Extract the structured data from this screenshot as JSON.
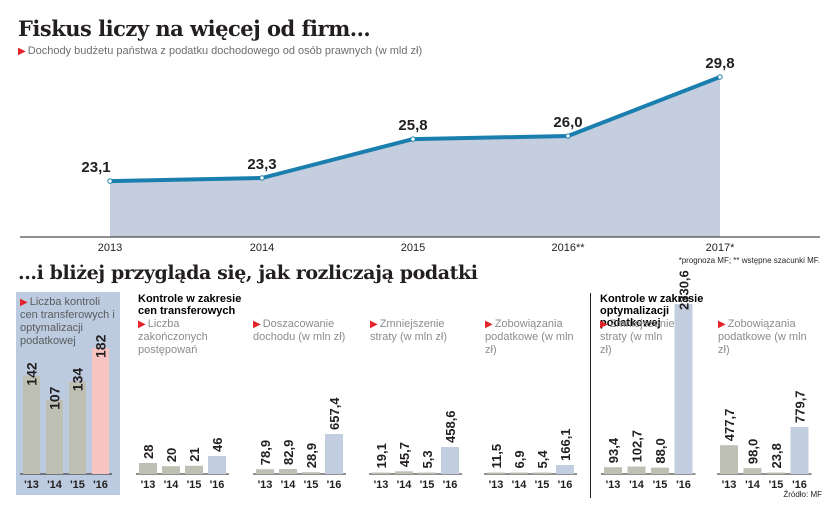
{
  "title": "Fiskus liczy na więcej od firm...",
  "subtitle": "Dochody budżetu państwa z podatku dochodowego od osób prawnych (w mld zł)",
  "footnote": "*prognoza MF; ** wstępne szacunki MF.",
  "bottom_title": "...i bliżej przygląda się, jak rozliczają podatki",
  "group1_title": "Kontrole w zakresie cen transferowych",
  "group2_title": "Kontrole w zakresie optymalizacji podatkowej",
  "source": "Źródło: MF",
  "colors": {
    "line": "#1a7fae",
    "area": "#c5cede",
    "bar_grey": "#bfc0b4",
    "bar_blue": "#c3cde0",
    "bar_pink": "#f7c4c0",
    "accent": "#e2232a",
    "panel_bg": "#bccbe0"
  },
  "chart_data": [
    {
      "type": "area",
      "title": "Fiskus liczy na więcej od firm...",
      "subtitle": "Dochody budżetu państwa z podatku dochodowego od osób prawnych (w mld zł)",
      "x": [
        "2013",
        "2014",
        "2015",
        "2016**",
        "2017*"
      ],
      "values": [
        23.1,
        23.3,
        25.8,
        26.0,
        29.8
      ],
      "labels": [
        "23,1",
        "23,3",
        "25,8",
        "26,0",
        "29,8"
      ],
      "grid": false
    },
    {
      "type": "bar",
      "title": "Liczba kontroli cen transferowych i optymalizacji podatkowej",
      "categories": [
        "'13",
        "'14",
        "'15",
        "'16"
      ],
      "values": [
        142,
        107,
        134,
        182
      ],
      "labels": [
        "142",
        "107",
        "134",
        "182"
      ]
    },
    {
      "type": "bar",
      "title": "Liczba zakończonych postępowań",
      "group": "Kontrole w zakresie cen transferowych",
      "categories": [
        "'13",
        "'14",
        "'15",
        "'16"
      ],
      "values": [
        28,
        20,
        21,
        46
      ],
      "labels": [
        "28",
        "20",
        "21",
        "46"
      ]
    },
    {
      "type": "bar",
      "title": "Doszacowanie dochodu (w mln zł)",
      "group": "Kontrole w zakresie cen transferowych",
      "categories": [
        "'13",
        "'14",
        "'15",
        "'16"
      ],
      "values": [
        78.9,
        82.9,
        28.9,
        657.4
      ],
      "labels": [
        "78,9",
        "82,9",
        "28,9",
        "657,4"
      ]
    },
    {
      "type": "bar",
      "title": "Zmniejszenie straty (w mln zł)",
      "group": "Kontrole w zakresie cen transferowych",
      "categories": [
        "'13",
        "'14",
        "'15",
        "'16"
      ],
      "values": [
        19.1,
        45.7,
        5.3,
        458.6
      ],
      "labels": [
        "19,1",
        "45,7",
        "5,3",
        "458,6"
      ]
    },
    {
      "type": "bar",
      "title": "Zobowiązania podatkowe (w mln zł)",
      "group": "Kontrole w zakresie cen transferowych",
      "categories": [
        "'13",
        "'14",
        "'15",
        "'16"
      ],
      "values": [
        11.5,
        6.9,
        5.4,
        166.1
      ],
      "labels": [
        "11,5",
        "6,9",
        "5,4",
        "166,1"
      ]
    },
    {
      "type": "bar",
      "title": "Zmniejszenie straty (w mln zł)",
      "group": "Kontrole w zakresie optymalizacji podatkowej",
      "categories": [
        "'13",
        "'14",
        "'15",
        "'16"
      ],
      "values": [
        93.4,
        102.7,
        88.0,
        2330.6
      ],
      "labels": [
        "93,4",
        "102,7",
        "88,0",
        "2330,6"
      ]
    },
    {
      "type": "bar",
      "title": "Zobowiązania podatkowe (w mln zł)",
      "group": "Kontrole w zakresie optymalizacji podatkowej",
      "categories": [
        "'13",
        "'14",
        "'15",
        "'16"
      ],
      "values": [
        477.7,
        98.0,
        23.8,
        779.7
      ],
      "labels": [
        "477,7",
        "98,0",
        "23,8",
        "779,7"
      ]
    }
  ]
}
